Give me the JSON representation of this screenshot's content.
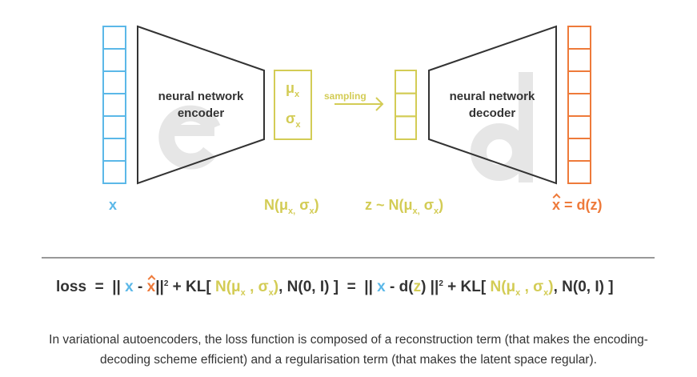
{
  "colors": {
    "input": "#5bb8e8",
    "latent": "#d3cc55",
    "output": "#ee7a3a",
    "network": "#333333",
    "watermark": "#e6e6e6"
  },
  "encoder": {
    "line1": "neural network",
    "line2": "encoder",
    "watermark": "e"
  },
  "decoder": {
    "line1": "neural network",
    "line2": "decoder",
    "watermark": "d"
  },
  "latent": {
    "mu": "μ",
    "sigma": "σ",
    "sub": "x"
  },
  "sampling": "sampling",
  "labels": {
    "x": "x",
    "dist": {
      "pre": "N(μ",
      "s1": "x,",
      "mid": " σ",
      "s2": "x",
      "post": ")"
    },
    "z": {
      "pre": "z ~ N(μ",
      "s1": "x,",
      "mid": " σ",
      "s2": "x",
      "post": ")"
    },
    "xhat": {
      "hat": "x",
      "post": " = d(z)"
    }
  },
  "loss": {
    "t1": "loss  =  || ",
    "x": "x",
    " minus": " - ",
    "xhat": "x",
    "t2": "||",
    "sq": "2",
    "t3": " + KL[ ",
    "n1": "N(μ",
    "sx": "x",
    "comma": " , σ",
    "sx2": "x",
    "close": ")",
    "t4": ", N(0, I) ]  =  || ",
    "x2": "x",
    "t5": " - d(",
    "z": "z",
    "t6": ") ||",
    "sq2": "2",
    "t7": " + KL[ ",
    "t8": ", N(0, I) ]"
  },
  "caption": {
    "line1": "In variational autoencoders, the loss function is composed of a reconstruction term (that makes the encoding-",
    "line2": "decoding scheme efficient) and a regularisation term (that makes the latent space regular)."
  }
}
